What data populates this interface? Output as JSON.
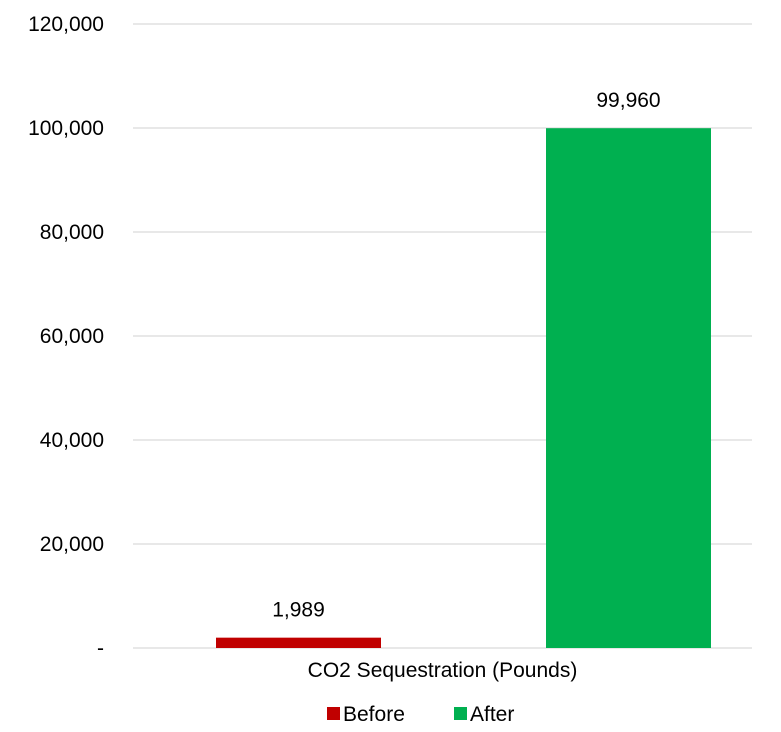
{
  "chart_data": {
    "type": "bar",
    "categories": [
      "CO2 Sequestration (Pounds)"
    ],
    "series": [
      {
        "name": "Before",
        "values": [
          1989
        ],
        "color": "#c00000"
      },
      {
        "name": "After",
        "values": [
          99960
        ],
        "color": "#00b050"
      }
    ],
    "data_labels": [
      "1,989",
      "99,960"
    ],
    "title": "",
    "xlabel": "",
    "ylabel": "",
    "ylim": [
      0,
      120000
    ],
    "yticks": [
      0,
      20000,
      40000,
      60000,
      80000,
      100000,
      120000
    ],
    "ytick_labels": [
      "-",
      "20,000",
      "40,000",
      "60,000",
      "80,000",
      "100,000",
      "120,000"
    ],
    "grid": true,
    "gridline_color": "#d9d9d9",
    "legend_position": "bottom"
  }
}
